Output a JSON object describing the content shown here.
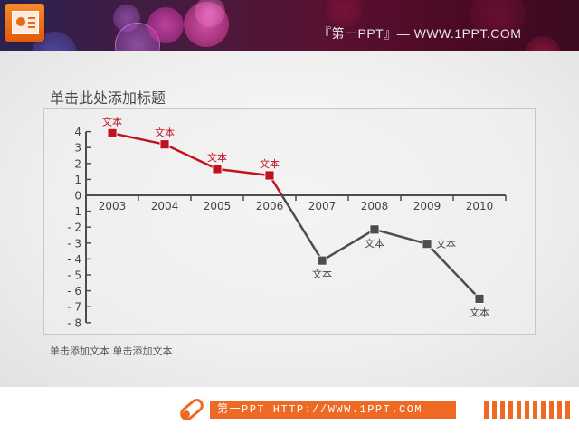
{
  "header": {
    "banner_text": "『第一PPT』— WWW.1PPT.COM",
    "logo_icon": "powerpoint-icon"
  },
  "slide": {
    "title": "单击此处添加标题",
    "caption": "单击添加文本 单击添加文本"
  },
  "footer": {
    "bar_text": "第一PPT HTTP://WWW.1PPT.COM",
    "icon": "pencil-icon",
    "accent_color": "#ee6a24"
  },
  "chart_data": {
    "type": "line",
    "title": "单击此处添加标题",
    "xlabel": "",
    "ylabel": "",
    "categories": [
      "2003",
      "2004",
      "2005",
      "2006",
      "2007",
      "2008",
      "2009",
      "2010"
    ],
    "values": [
      3.9,
      3.2,
      1.65,
      1.25,
      -4.1,
      -2.15,
      -3.05,
      -6.5
    ],
    "point_labels": [
      "文本",
      "文本",
      "文本",
      "文本",
      "文本",
      "文本",
      "文本",
      "文本"
    ],
    "y_ticks": [
      "4",
      "3",
      "2",
      "1",
      "0",
      "-1",
      "- 2",
      "- 3",
      "- 4",
      "- 5",
      "- 6",
      "- 7",
      "- 8"
    ],
    "ylim": [
      -8,
      4
    ],
    "grid": false,
    "legend": "none",
    "colors": {
      "positive": "#c0121f",
      "negative": "#4d4d4d",
      "axis": "#4d4d4d"
    }
  }
}
